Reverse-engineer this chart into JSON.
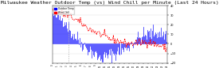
{
  "title": "Milwaukee Weather Outdoor Temp (vs) Wind Chill per Minute (Last 24 Hours)",
  "title_fontsize": 4.5,
  "background_color": "#ffffff",
  "plot_bg_color": "#ffffff",
  "n_points": 144,
  "ylim": [
    -20,
    40
  ],
  "y_ticks": [
    40,
    30,
    20,
    10,
    0,
    -10,
    -20
  ],
  "blue_color": "#0000ff",
  "red_color": "#ff0000",
  "vline_x": 20,
  "vline_color": "#aaaaaa"
}
